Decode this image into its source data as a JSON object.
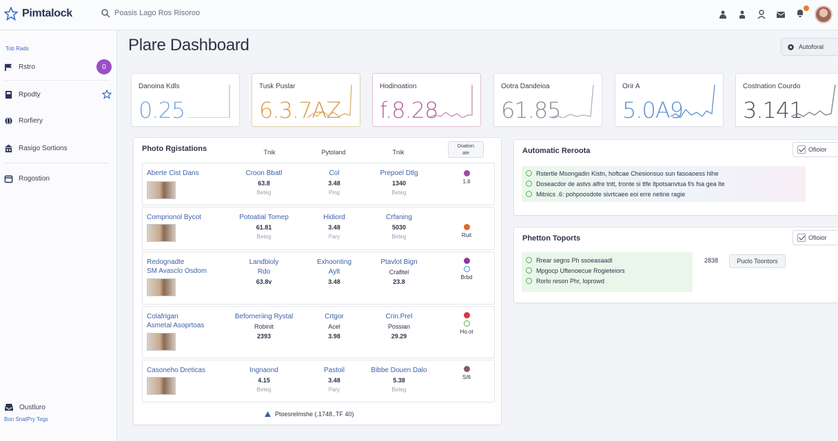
{
  "app": {
    "brand": "Pimtalock"
  },
  "search": {
    "placeholder": "Poasis Lago Ros Risoroo"
  },
  "sidebar": {
    "section_label": "Tob Rads",
    "items": [
      {
        "label": "Rstro",
        "badge": "0"
      },
      {
        "label": "Rpodty"
      },
      {
        "label": "Rorfiery"
      },
      {
        "label": "Rasigo Sortions"
      },
      {
        "label": "Rogostion"
      }
    ],
    "bottom_label": "Oustluro",
    "bottom_link": "Bon SnatPry Tegs"
  },
  "header": {
    "title": "Plare Dashboard",
    "action_label": "Autoforal"
  },
  "kpis": [
    {
      "label": "Danoina Kdls",
      "value": "0.25",
      "color": "#7aa4dc"
    },
    {
      "label": "Tusk Puslar",
      "value": "6.3.7AZ",
      "color": "#d79a4c"
    },
    {
      "label": "Hodinoation",
      "value": "f.8.28",
      "color": "#b5659c"
    },
    {
      "label": "Ootra Dandeioa",
      "value": "61.85",
      "color": "#8a8d96"
    },
    {
      "label": "Orir A",
      "value": "5.0A9",
      "color": "#5b8fd4"
    },
    {
      "label": "Costnation Courdo",
      "value": "3.141",
      "color": "#4a4e58"
    }
  ],
  "registrations": {
    "title": "Photo Rgistations",
    "columns": [
      "Tnik",
      "Pytoland",
      "Tnik"
    ],
    "status_head": "Doation\nate",
    "rows": [
      {
        "name": "Aberte Cist Dans",
        "a": [
          "Croon Bbatl",
          "63.8",
          "Beteg"
        ],
        "b": [
          "Col",
          "3.48",
          "Ping"
        ],
        "c": [
          "Prepoel Dtlg",
          "1340",
          "Beteg"
        ],
        "status": [
          "#a04aa0"
        ],
        "code": "1.6"
      },
      {
        "name": "Comprionol Bycot",
        "a": [
          "Potoatial Tomep",
          "61.81",
          "Beteg"
        ],
        "b": [
          "Hidiord",
          "3.48",
          "Pary"
        ],
        "c": [
          "Crfaning",
          "5030",
          "Beteg"
        ],
        "status": [
          "#e06a2a"
        ],
        "code": "Ruit"
      },
      {
        "name": "Redognadte\nSM Avasclo Osdom",
        "a": [
          "Landbioly",
          "Rdo",
          "63.8v"
        ],
        "b": [
          "Exhoonting",
          "Aylt",
          "3.48"
        ],
        "c": [
          "Ptavlot Bign",
          "Crafitel",
          "23.8"
        ],
        "status": [
          "#8a3aa0",
          "ring:#3d8ad8"
        ],
        "code": "Brbd"
      },
      {
        "name": "Colafrigan\nAsmetal Asoprtoas",
        "a": [
          "Beforneriing Rystal",
          "Robinit",
          "2393"
        ],
        "b": [
          "Crtgor",
          "Acel",
          "3.98"
        ],
        "c": [
          "Crin.Prel",
          "Possian",
          "29.29"
        ],
        "status": [
          "#d63a3a",
          "ring:#4fb04f"
        ],
        "code": "Ho.ot"
      },
      {
        "name": "Casoneho Dreticas",
        "a": [
          "Ingnaond",
          "4.15",
          "Beteg"
        ],
        "b": [
          "Pastoil",
          "3.48",
          "Pary"
        ],
        "c": [
          "Bibbe Douen Dalo",
          "5.38",
          "Beteg"
        ],
        "status": [
          "#8a5a6a"
        ],
        "code": "S/6"
      }
    ],
    "footer": "Ptoesrelmshe (.1748..TF 40)"
  },
  "automatic": {
    "title": "Automatic Reroota",
    "toggle_label": "Ofioior",
    "lines": [
      "Rstertle Msongadin Kistn, hoftcae Chesionsuo sun fasoaoess hlhe",
      "Doseacdor de astvs alfre tntt, tronte si ttfe ltpotsanvtua f/s fsa gea lte",
      "Mitnics .6: pohpoosdote sivrtcaee eoi erre netine ragie"
    ]
  },
  "reports": {
    "title": "Phetton Toports",
    "toggle_label": "Ofioior",
    "lines": [
      "Rrear segns Ph ssoeasaadl",
      "Mpgocp Uftenoecue Rogieteiors",
      "Rorlo reson Phr, loprowd"
    ],
    "count": "2838",
    "button_label": "Puclo Toontors"
  }
}
